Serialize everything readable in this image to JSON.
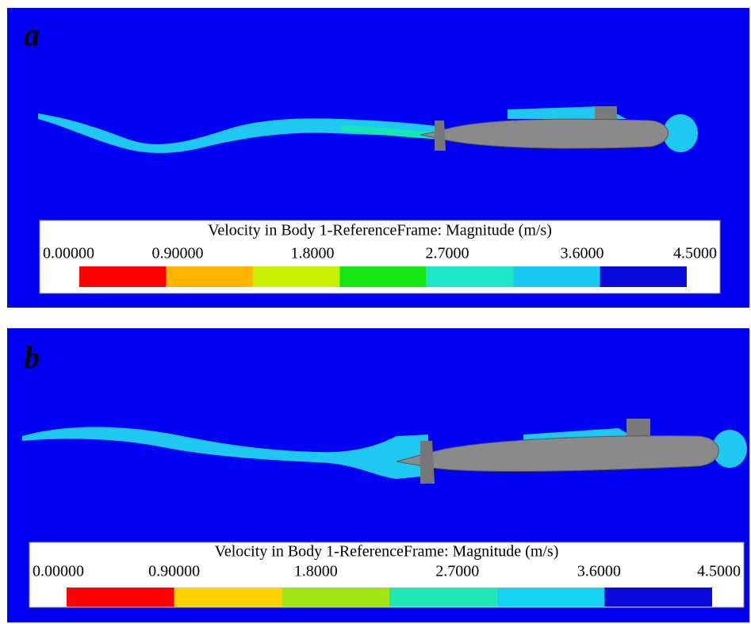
{
  "panels": [
    {
      "label": "a",
      "legend": {
        "title": "Velocity in Body 1-ReferenceFrame: Magnitude (m/s)",
        "ticks": [
          "0.00000",
          "0.90000",
          "1.8000",
          "2.7000",
          "3.6000",
          "4.5000"
        ],
        "colors": [
          "#ff0000",
          "#ffb400",
          "#c8f000",
          "#14e614",
          "#1ee6c8",
          "#14c8f0",
          "#0a0adc"
        ]
      }
    },
    {
      "label": "b",
      "legend": {
        "title": "Velocity in Body 1-ReferenceFrame: Magnitude (m/s)",
        "ticks": [
          "0.00000",
          "0.90000",
          "1.8000",
          "2.7000",
          "3.6000",
          "4.5000"
        ],
        "colors": [
          "#ff0000",
          "#ffd200",
          "#a0e614",
          "#1ee6b4",
          "#14d2f0",
          "#0a0adc"
        ]
      }
    }
  ]
}
